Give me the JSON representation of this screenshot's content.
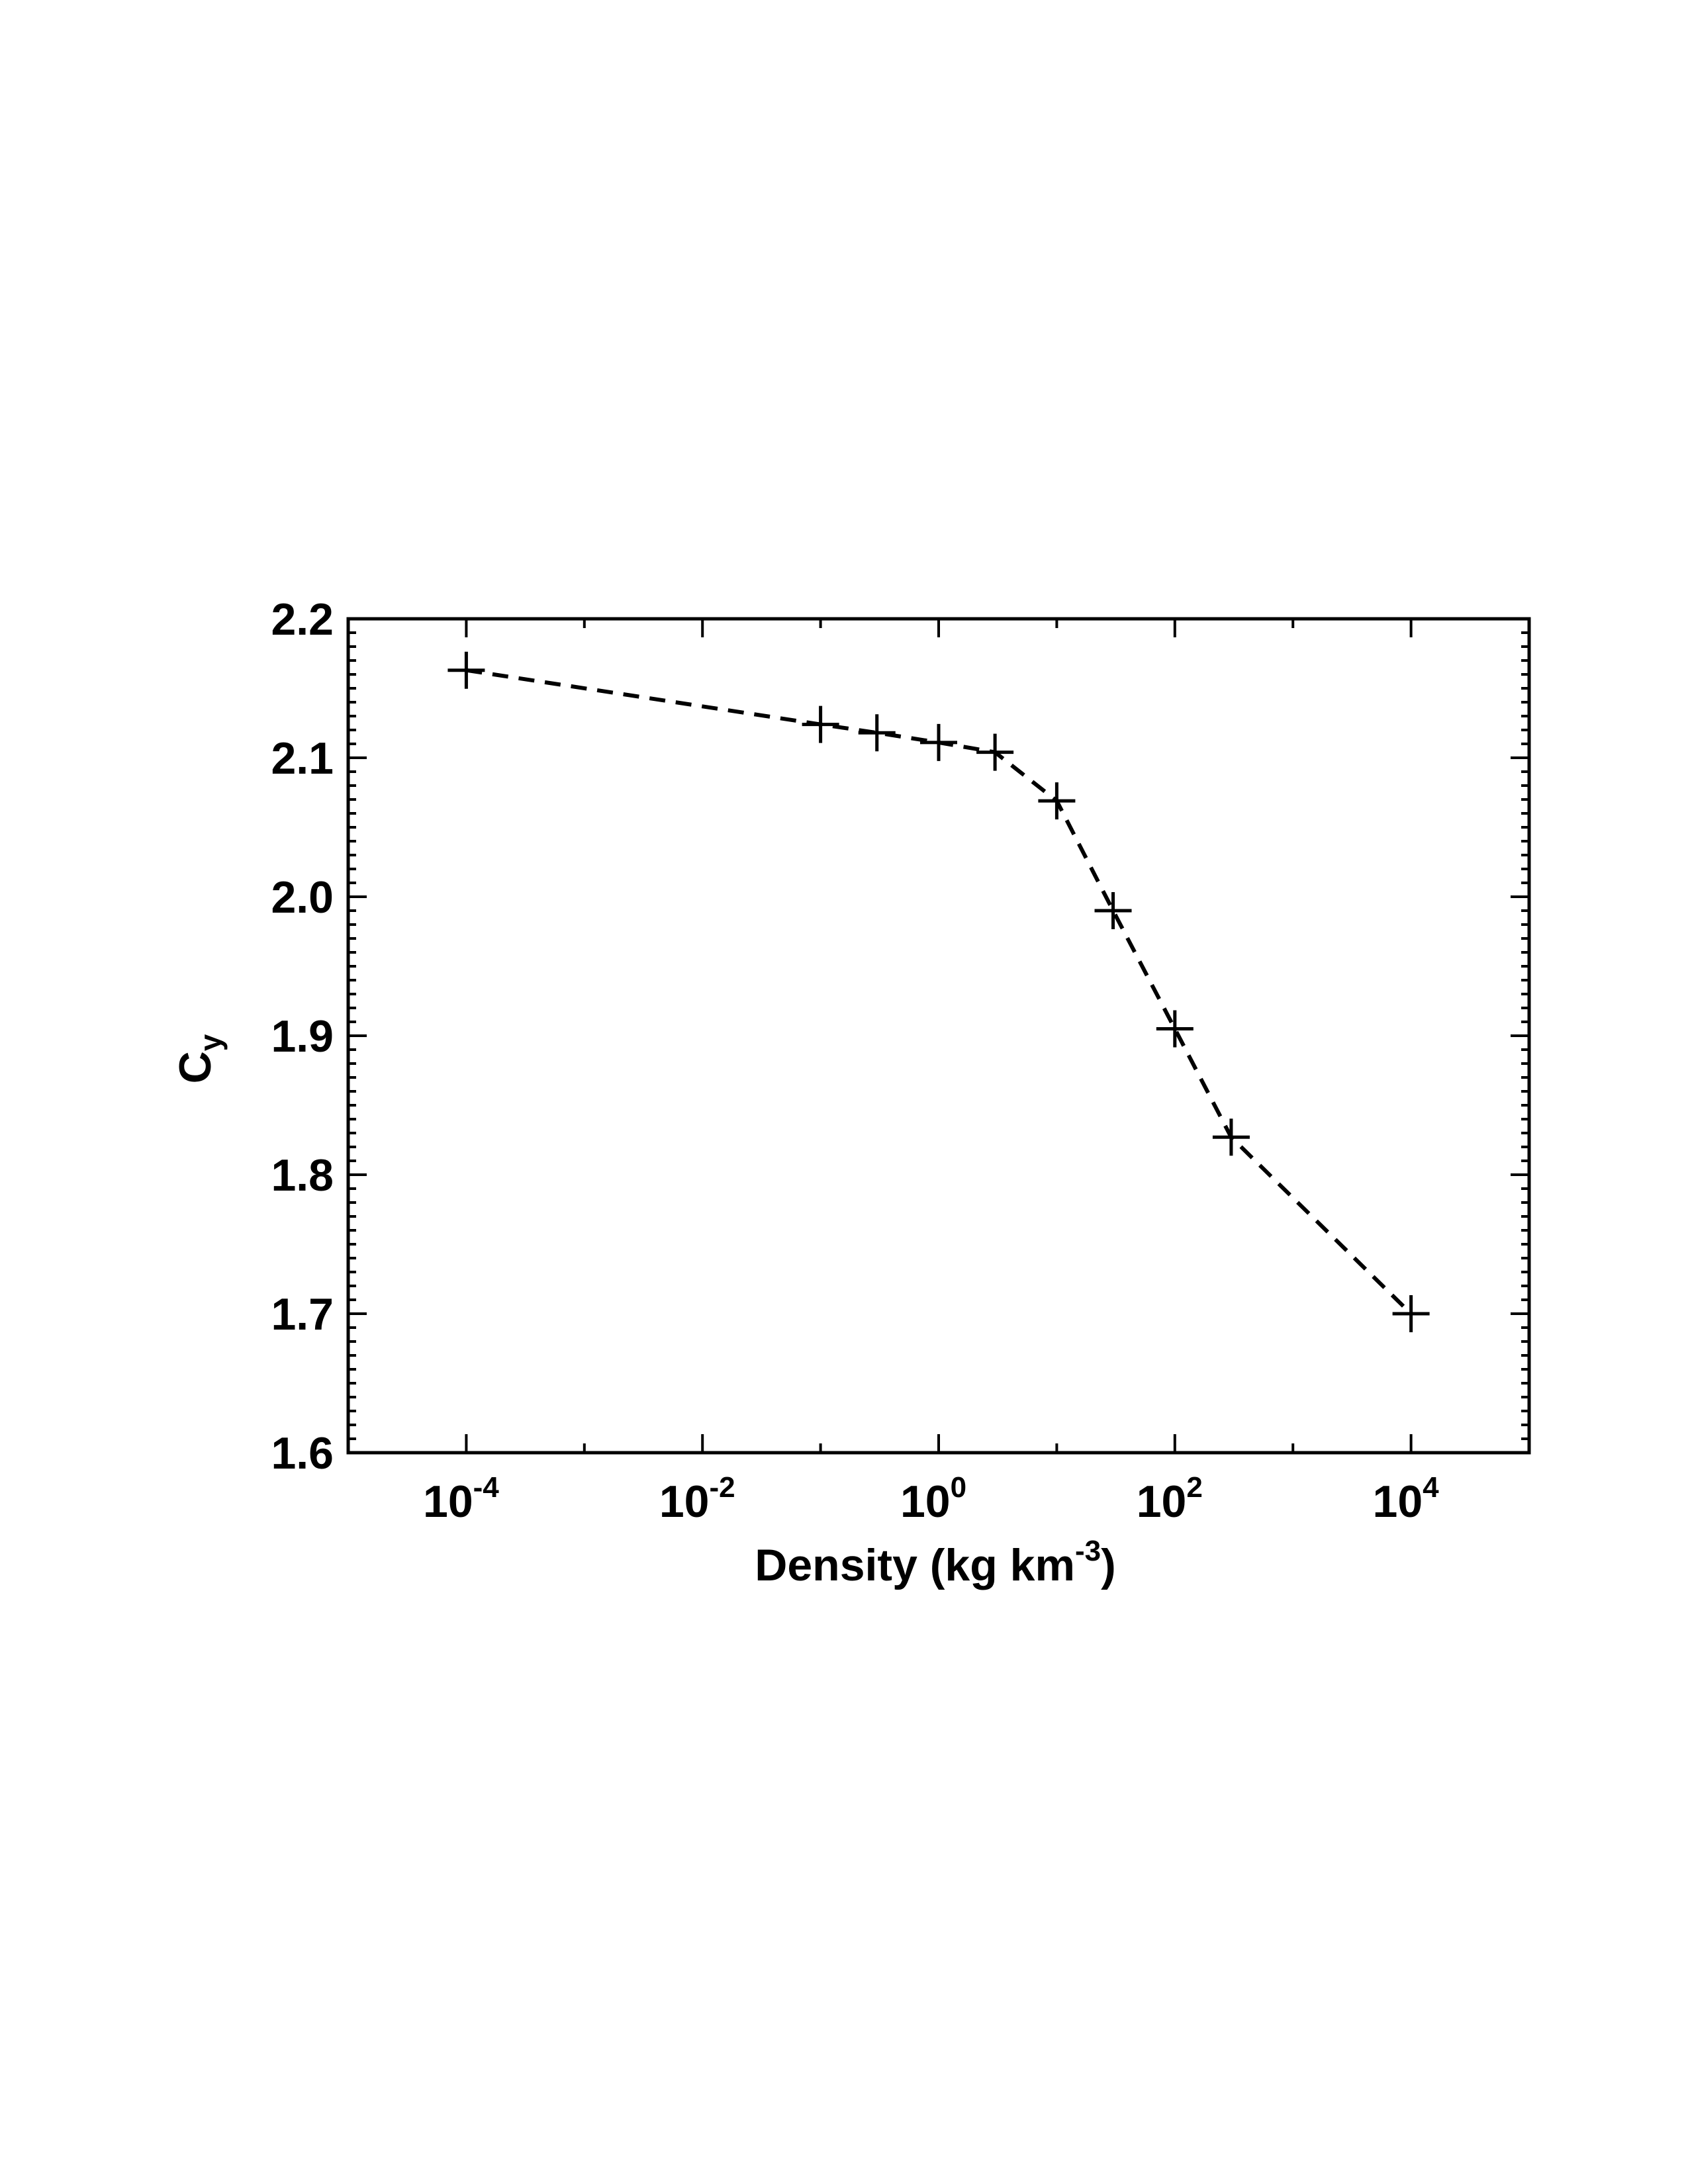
{
  "chart_data": {
    "type": "line",
    "xlabel": "Density (kg km",
    "xlabel_sup": "-3",
    "xlabel_end": ")",
    "ylabel": "C",
    "ylabel_sub": "y",
    "x_scale": "log",
    "xlim": [
      1e-05,
      100000
    ],
    "ylim": [
      1.6,
      2.2
    ],
    "x_ticks": [
      {
        "value": 0.0001,
        "base": "10",
        "exp": "-4"
      },
      {
        "value": 0.01,
        "base": "10",
        "exp": "-2"
      },
      {
        "value": 1,
        "base": "10",
        "exp": "0"
      },
      {
        "value": 100,
        "base": "10",
        "exp": "2"
      },
      {
        "value": 10000,
        "base": "10",
        "exp": "4"
      }
    ],
    "y_ticks": [
      {
        "value": 1.6,
        "label": "1.6"
      },
      {
        "value": 1.7,
        "label": "1.7"
      },
      {
        "value": 1.8,
        "label": "1.8"
      },
      {
        "value": 1.9,
        "label": "1.9"
      },
      {
        "value": 2.0,
        "label": "2.0"
      },
      {
        "value": 2.1,
        "label": "2.1"
      },
      {
        "value": 2.2,
        "label": "2.2"
      }
    ],
    "grid": false,
    "line_style": "dashed",
    "marker": "plus",
    "line_color": "#000000",
    "series": [
      {
        "x": [
          0.0001,
          0.1,
          0.3,
          1,
          3,
          10,
          30,
          100,
          300,
          10000
        ],
        "y": [
          2.163,
          2.124,
          2.118,
          2.111,
          2.104,
          2.069,
          1.99,
          1.905,
          1.827,
          1.7
        ]
      }
    ]
  }
}
